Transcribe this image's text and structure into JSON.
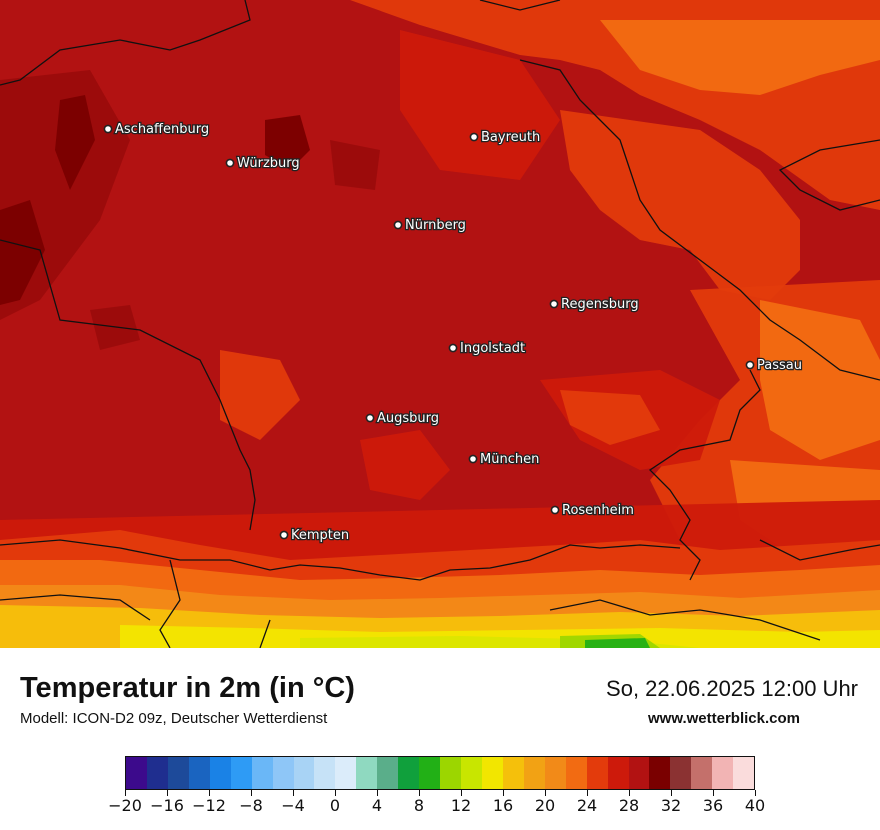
{
  "map": {
    "cities": [
      {
        "name": "Aschaffenburg"
      },
      {
        "name": "Würzburg"
      },
      {
        "name": "Bayreuth"
      },
      {
        "name": "Nürnberg"
      },
      {
        "name": "Regensburg"
      },
      {
        "name": "Ingolstadt"
      },
      {
        "name": "Passau"
      },
      {
        "name": "Augsburg"
      },
      {
        "name": "München"
      },
      {
        "name": "Rosenheim"
      },
      {
        "name": "Kempten"
      }
    ],
    "colors": {
      "t_36": "#5c0505",
      "t_34": "#7a0000",
      "t_32": "#9b0c0c",
      "t_30": "#b21212",
      "t_28": "#cd1a0b",
      "t_26": "#e33b0c",
      "t_24": "#f26b12",
      "t_22": "#f28a18",
      "t_20": "#f5c00b",
      "t_18": "#f2e600",
      "t_16": "#dbe600",
      "t_12": "#9cd600",
      "t_10": "#22b016",
      "border": "#111111"
    }
  },
  "footer": {
    "title": "Temperatur in 2m (in °C)",
    "subtitle": "Modell: ICON-D2 09z, Deutscher Wetterdienst",
    "datetime": "So, 22.06.2025 12:00 Uhr",
    "website": "www.wetterblick.com"
  },
  "legend": {
    "colors": [
      "#3c0a8c",
      "#1f2e8f",
      "#1d4a9a",
      "#1a64c0",
      "#1a82e6",
      "#2e9bf5",
      "#6ab7f7",
      "#8ec6f7",
      "#a8d3f5",
      "#c6e2f7",
      "#dbecfa",
      "#8fd9c0",
      "#5aae8a",
      "#10a03c",
      "#22b016",
      "#9cd600",
      "#c8e600",
      "#f2e600",
      "#f5c00b",
      "#f2a214",
      "#f28a18",
      "#f26b12",
      "#e33b0c",
      "#cd1a0b",
      "#b21212",
      "#7a0000",
      "#8b3232",
      "#c4706b",
      "#f2b4b4",
      "#fadcdc"
    ],
    "tick_labels": [
      "−20",
      "−16",
      "−12",
      "−8",
      "−4",
      "0",
      "4",
      "8",
      "12",
      "16",
      "20",
      "24",
      "28",
      "32",
      "36",
      "40"
    ]
  }
}
